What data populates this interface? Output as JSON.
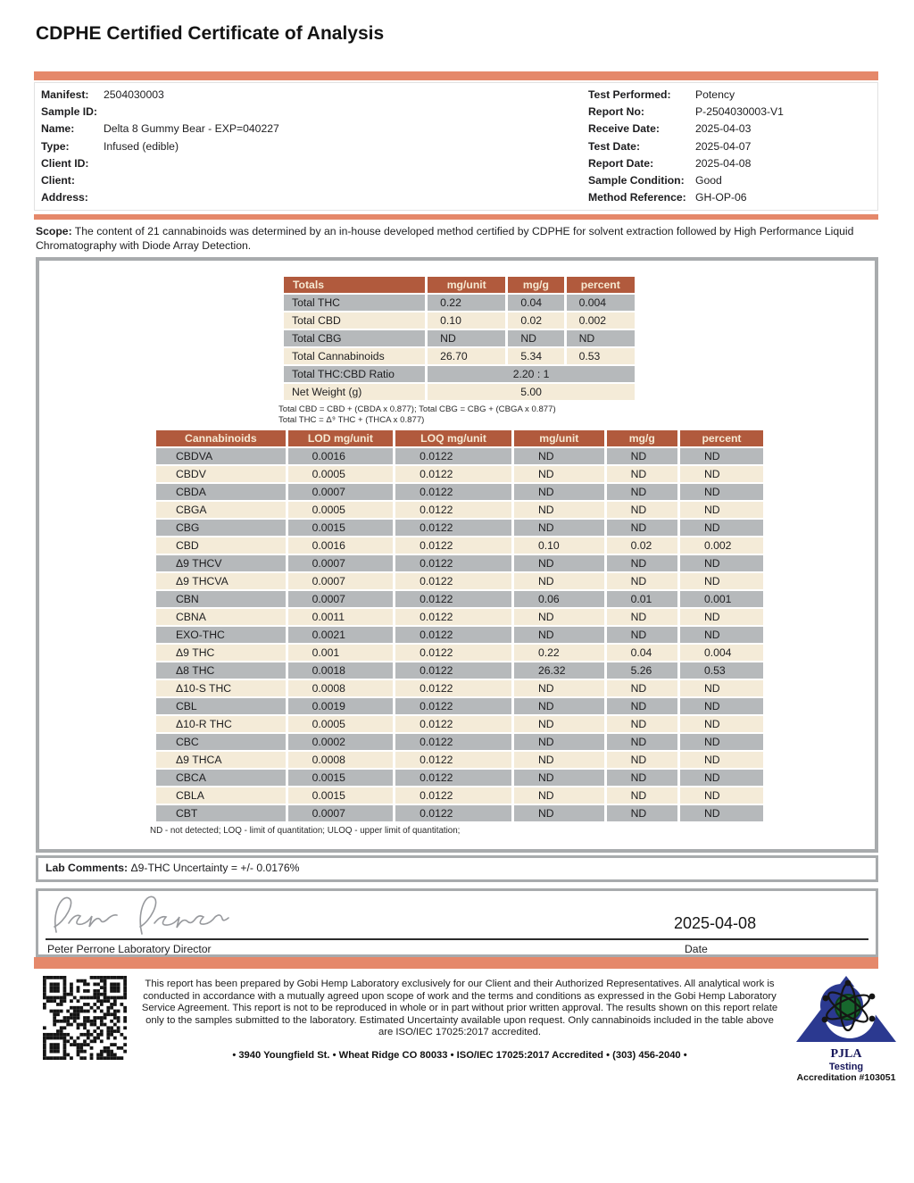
{
  "title": "CDPHE Certified Certificate of Analysis",
  "info": {
    "left": [
      {
        "label": "Manifest:",
        "value": "2504030003"
      },
      {
        "label": "Sample ID:",
        "value": ""
      },
      {
        "label": "Name:",
        "value": "Delta 8 Gummy Bear - EXP=040227"
      },
      {
        "label": "Type:",
        "value": "Infused (edible)"
      },
      {
        "label": "Client ID:",
        "value": ""
      },
      {
        "label": "Client:",
        "value": ""
      },
      {
        "label": "Address:",
        "value": ""
      }
    ],
    "right": [
      {
        "label": "Test Performed:",
        "value": "Potency"
      },
      {
        "label": "Report No:",
        "value": "P-2504030003-V1"
      },
      {
        "label": "Receive Date:",
        "value": "2025-04-03"
      },
      {
        "label": "Test Date:",
        "value": "2025-04-07"
      },
      {
        "label": "Report Date:",
        "value": "2025-04-08"
      },
      {
        "label": "Sample Condition:",
        "value": "Good"
      },
      {
        "label": "Method Reference:",
        "value": "GH-OP-06"
      }
    ]
  },
  "scope": {
    "label": "Scope:",
    "text": " The content of 21 cannabinoids was determined by an in-house developed method certified by CDPHE for solvent extraction followed by High Performance Liquid Chromatography with Diode Array Detection."
  },
  "totals_table": {
    "headers": [
      "Totals",
      "mg/unit",
      "mg/g",
      "percent"
    ],
    "rows": [
      {
        "label": "Total THC",
        "values": [
          "0.22",
          "0.04",
          "0.004"
        ]
      },
      {
        "label": "Total CBD",
        "values": [
          "0.10",
          "0.02",
          "0.002"
        ]
      },
      {
        "label": "Total CBG",
        "values": [
          "ND",
          "ND",
          "ND"
        ]
      },
      {
        "label": "Total Cannabinoids",
        "values": [
          "26.70",
          "5.34",
          "0.53"
        ]
      }
    ],
    "span_rows": [
      {
        "label": "Total THC:CBD Ratio",
        "value": "2.20 : 1"
      },
      {
        "label": "Net Weight (g)",
        "value": "5.00"
      }
    ],
    "footnote_line1": "Total CBD = CBD + (CBDA x 0.877); Total CBG = CBG + (CBGA x 0.877)",
    "footnote_line2": "Total THC = Δ⁹ THC + (THCA x 0.877)"
  },
  "cannabinoid_table": {
    "headers": [
      "Cannabinoids",
      "LOD mg/unit",
      "LOQ mg/unit",
      "mg/unit",
      "mg/g",
      "percent"
    ],
    "rows": [
      [
        "CBDVA",
        "0.0016",
        "0.0122",
        "ND",
        "ND",
        "ND"
      ],
      [
        "CBDV",
        "0.0005",
        "0.0122",
        "ND",
        "ND",
        "ND"
      ],
      [
        "CBDA",
        "0.0007",
        "0.0122",
        "ND",
        "ND",
        "ND"
      ],
      [
        "CBGA",
        "0.0005",
        "0.0122",
        "ND",
        "ND",
        "ND"
      ],
      [
        "CBG",
        "0.0015",
        "0.0122",
        "ND",
        "ND",
        "ND"
      ],
      [
        "CBD",
        "0.0016",
        "0.0122",
        "0.10",
        "0.02",
        "0.002"
      ],
      [
        "Δ9 THCV",
        "0.0007",
        "0.0122",
        "ND",
        "ND",
        "ND"
      ],
      [
        "Δ9 THCVA",
        "0.0007",
        "0.0122",
        "ND",
        "ND",
        "ND"
      ],
      [
        "CBN",
        "0.0007",
        "0.0122",
        "0.06",
        "0.01",
        "0.001"
      ],
      [
        "CBNA",
        "0.0011",
        "0.0122",
        "ND",
        "ND",
        "ND"
      ],
      [
        "EXO-THC",
        "0.0021",
        "0.0122",
        "ND",
        "ND",
        "ND"
      ],
      [
        "Δ9 THC",
        "0.001",
        "0.0122",
        "0.22",
        "0.04",
        "0.004"
      ],
      [
        "Δ8 THC",
        "0.0018",
        "0.0122",
        "26.32",
        "5.26",
        "0.53"
      ],
      [
        "Δ10-S THC",
        "0.0008",
        "0.0122",
        "ND",
        "ND",
        "ND"
      ],
      [
        "CBL",
        "0.0019",
        "0.0122",
        "ND",
        "ND",
        "ND"
      ],
      [
        "Δ10-R THC",
        "0.0005",
        "0.0122",
        "ND",
        "ND",
        "ND"
      ],
      [
        "CBC",
        "0.0002",
        "0.0122",
        "ND",
        "ND",
        "ND"
      ],
      [
        "Δ9 THCA",
        "0.0008",
        "0.0122",
        "ND",
        "ND",
        "ND"
      ],
      [
        "CBCA",
        "0.0015",
        "0.0122",
        "ND",
        "ND",
        "ND"
      ],
      [
        "CBLA",
        "0.0015",
        "0.0122",
        "ND",
        "ND",
        "ND"
      ],
      [
        "CBT",
        "0.0007",
        "0.0122",
        "ND",
        "ND",
        "ND"
      ]
    ],
    "footnote": "ND - not detected; LOQ - limit of quantitation; ULOQ - upper limit of quantitation;"
  },
  "lab_comments": {
    "label": "Lab Comments:",
    "text": " Δ9-THC Uncertainty = +/- 0.0176%"
  },
  "signature": {
    "signer_line": "Peter Perrone Laboratory Director",
    "date_value": "2025-04-08",
    "date_label": "Date"
  },
  "footer": {
    "disclaimer": "This report has been prepared by Gobi Hemp Laboratory exclusively for our Client and their Authorized Representatives. All analytical work is conducted in accordance with a mutually agreed upon scope of work and the terms and conditions as expressed in the Gobi Hemp Laboratory Service Agreement. This report is not to be reproduced in whole or in part without prior written approval. The results shown on this report relate only to the samples submitted to the laboratory. Estimated Uncertainty available upon request. Only cannabinoids included in the table above are ISO/IEC 17025:2017 accredited.",
    "address_line": "• 3940 Youngfield St. • Wheat Ridge CO 80033 • ISO/IEC 17025:2017 Accredited • (303) 456-2040 •",
    "pjla": {
      "name": "PJLA",
      "testing": "Testing",
      "accreditation": "Accreditation #103051"
    }
  },
  "colors": {
    "accent_bar": "#e5886a",
    "table_header_bg": "#b15a3d",
    "table_header_text": "#f6e9d2",
    "row_gray": "#b6b9bb",
    "row_cream": "#f4ebd8",
    "box_border": "#a8abad",
    "pjla_blue": "#2b3990",
    "pjla_green": "#17672d"
  }
}
